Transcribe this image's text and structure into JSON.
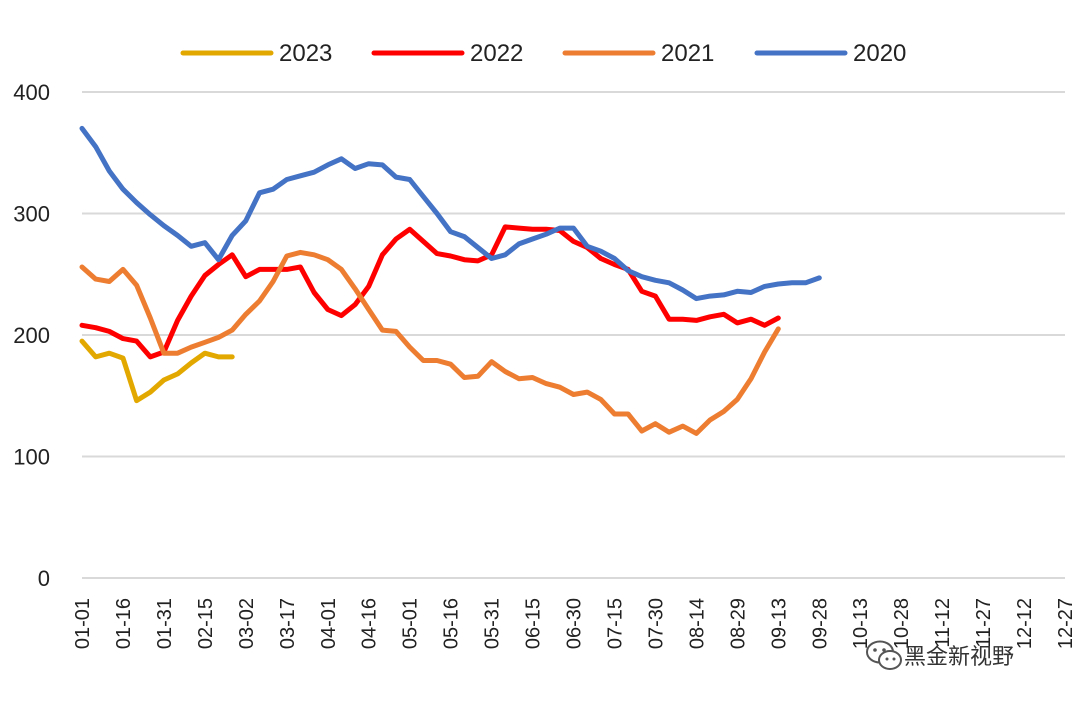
{
  "chart_data": {
    "type": "line",
    "title": "",
    "xlabel": "",
    "ylabel": "",
    "ylim": [
      0,
      400
    ],
    "yticks": [
      0,
      100,
      200,
      300,
      400
    ],
    "grid": true,
    "legend_position": "top",
    "x_tick_labels": [
      "01-01",
      "01-16",
      "01-31",
      "02-15",
      "03-02",
      "03-17",
      "04-01",
      "04-16",
      "05-01",
      "05-16",
      "05-31",
      "06-15",
      "06-30",
      "07-15",
      "07-30",
      "08-14",
      "08-29",
      "09-13",
      "09-28",
      "10-13",
      "10-28",
      "11-12",
      "11-27",
      "12-12",
      "12-27"
    ],
    "series": [
      {
        "name": "2023",
        "color": "#E3A800",
        "values": [
          [
            1,
            195
          ],
          [
            2,
            182
          ],
          [
            3,
            185
          ],
          [
            4,
            181
          ],
          [
            5,
            146
          ],
          [
            6,
            153
          ],
          [
            7,
            163
          ],
          [
            8,
            168
          ],
          [
            9,
            177
          ],
          [
            10,
            185
          ],
          [
            11,
            182
          ],
          [
            12,
            182
          ]
        ]
      },
      {
        "name": "2022",
        "color": "#FF0000",
        "values": [
          [
            1,
            208
          ],
          [
            2,
            206
          ],
          [
            3,
            203
          ],
          [
            4,
            197
          ],
          [
            5,
            195
          ],
          [
            6,
            182
          ],
          [
            7,
            186
          ],
          [
            8,
            212
          ],
          [
            9,
            232
          ],
          [
            10,
            249
          ],
          [
            11,
            258
          ],
          [
            12,
            266
          ],
          [
            13,
            248
          ],
          [
            14,
            254
          ],
          [
            15,
            254
          ],
          [
            16,
            254
          ],
          [
            17,
            256
          ],
          [
            18,
            235
          ],
          [
            19,
            221
          ],
          [
            20,
            216
          ],
          [
            21,
            225
          ],
          [
            22,
            240
          ],
          [
            23,
            266
          ],
          [
            24,
            279
          ],
          [
            25,
            287
          ],
          [
            26,
            277
          ],
          [
            27,
            267
          ],
          [
            28,
            265
          ],
          [
            29,
            262
          ],
          [
            30,
            261
          ],
          [
            31,
            266
          ],
          [
            32,
            289
          ],
          [
            33,
            288
          ],
          [
            34,
            287
          ],
          [
            35,
            287
          ],
          [
            36,
            286
          ],
          [
            37,
            277
          ],
          [
            38,
            272
          ],
          [
            39,
            263
          ],
          [
            40,
            258
          ],
          [
            41,
            254
          ],
          [
            42,
            236
          ],
          [
            43,
            232
          ],
          [
            44,
            213
          ],
          [
            45,
            213
          ],
          [
            46,
            212
          ],
          [
            47,
            215
          ],
          [
            48,
            217
          ],
          [
            49,
            210
          ],
          [
            50,
            213
          ],
          [
            51,
            208
          ],
          [
            52,
            214
          ]
        ]
      },
      {
        "name": "2021",
        "color": "#ED7D31",
        "values": [
          [
            1,
            256
          ],
          [
            2,
            246
          ],
          [
            3,
            244
          ],
          [
            4,
            254
          ],
          [
            5,
            241
          ],
          [
            6,
            214
          ],
          [
            7,
            185
          ],
          [
            8,
            185
          ],
          [
            9,
            190
          ],
          [
            10,
            194
          ],
          [
            11,
            198
          ],
          [
            12,
            204
          ],
          [
            13,
            217
          ],
          [
            14,
            228
          ],
          [
            15,
            244
          ],
          [
            16,
            265
          ],
          [
            17,
            268
          ],
          [
            18,
            266
          ],
          [
            19,
            262
          ],
          [
            20,
            254
          ],
          [
            21,
            238
          ],
          [
            22,
            221
          ],
          [
            23,
            204
          ],
          [
            24,
            203
          ],
          [
            25,
            190
          ],
          [
            26,
            179
          ],
          [
            27,
            179
          ],
          [
            28,
            176
          ],
          [
            29,
            165
          ],
          [
            30,
            166
          ],
          [
            31,
            178
          ],
          [
            32,
            170
          ],
          [
            33,
            164
          ],
          [
            34,
            165
          ],
          [
            35,
            160
          ],
          [
            36,
            157
          ],
          [
            37,
            151
          ],
          [
            38,
            153
          ],
          [
            39,
            147
          ],
          [
            40,
            135
          ],
          [
            41,
            135
          ],
          [
            42,
            121
          ],
          [
            43,
            127
          ],
          [
            44,
            120
          ],
          [
            45,
            125
          ],
          [
            46,
            119
          ],
          [
            47,
            130
          ],
          [
            48,
            137
          ],
          [
            49,
            147
          ],
          [
            50,
            164
          ],
          [
            51,
            186
          ],
          [
            52,
            205
          ]
        ]
      },
      {
        "name": "2020",
        "color": "#4472C4",
        "values": [
          [
            1,
            370
          ],
          [
            2,
            355
          ],
          [
            3,
            335
          ],
          [
            4,
            320
          ],
          [
            5,
            309
          ],
          [
            6,
            299
          ],
          [
            7,
            290
          ],
          [
            8,
            282
          ],
          [
            9,
            273
          ],
          [
            10,
            276
          ],
          [
            11,
            262
          ],
          [
            12,
            282
          ],
          [
            13,
            294
          ],
          [
            14,
            317
          ],
          [
            15,
            320
          ],
          [
            16,
            328
          ],
          [
            17,
            331
          ],
          [
            18,
            334
          ],
          [
            19,
            340
          ],
          [
            20,
            345
          ],
          [
            21,
            337
          ],
          [
            22,
            341
          ],
          [
            23,
            340
          ],
          [
            24,
            330
          ],
          [
            25,
            328
          ],
          [
            26,
            314
          ],
          [
            27,
            300
          ],
          [
            28,
            285
          ],
          [
            29,
            281
          ],
          [
            30,
            272
          ],
          [
            31,
            263
          ],
          [
            32,
            266
          ],
          [
            33,
            275
          ],
          [
            34,
            279
          ],
          [
            35,
            283
          ],
          [
            36,
            288
          ],
          [
            37,
            288
          ],
          [
            38,
            273
          ],
          [
            39,
            269
          ],
          [
            40,
            263
          ],
          [
            41,
            253
          ],
          [
            42,
            248
          ],
          [
            43,
            245
          ],
          [
            44,
            243
          ],
          [
            45,
            237
          ],
          [
            46,
            230
          ],
          [
            47,
            232
          ],
          [
            48,
            233
          ],
          [
            49,
            236
          ],
          [
            50,
            235
          ],
          [
            51,
            240
          ],
          [
            52,
            242
          ],
          [
            53,
            243
          ],
          [
            54,
            243
          ],
          [
            55,
            247
          ]
        ]
      }
    ]
  },
  "watermark": {
    "text": "黑金新视野",
    "icon": "wechat-icon"
  }
}
